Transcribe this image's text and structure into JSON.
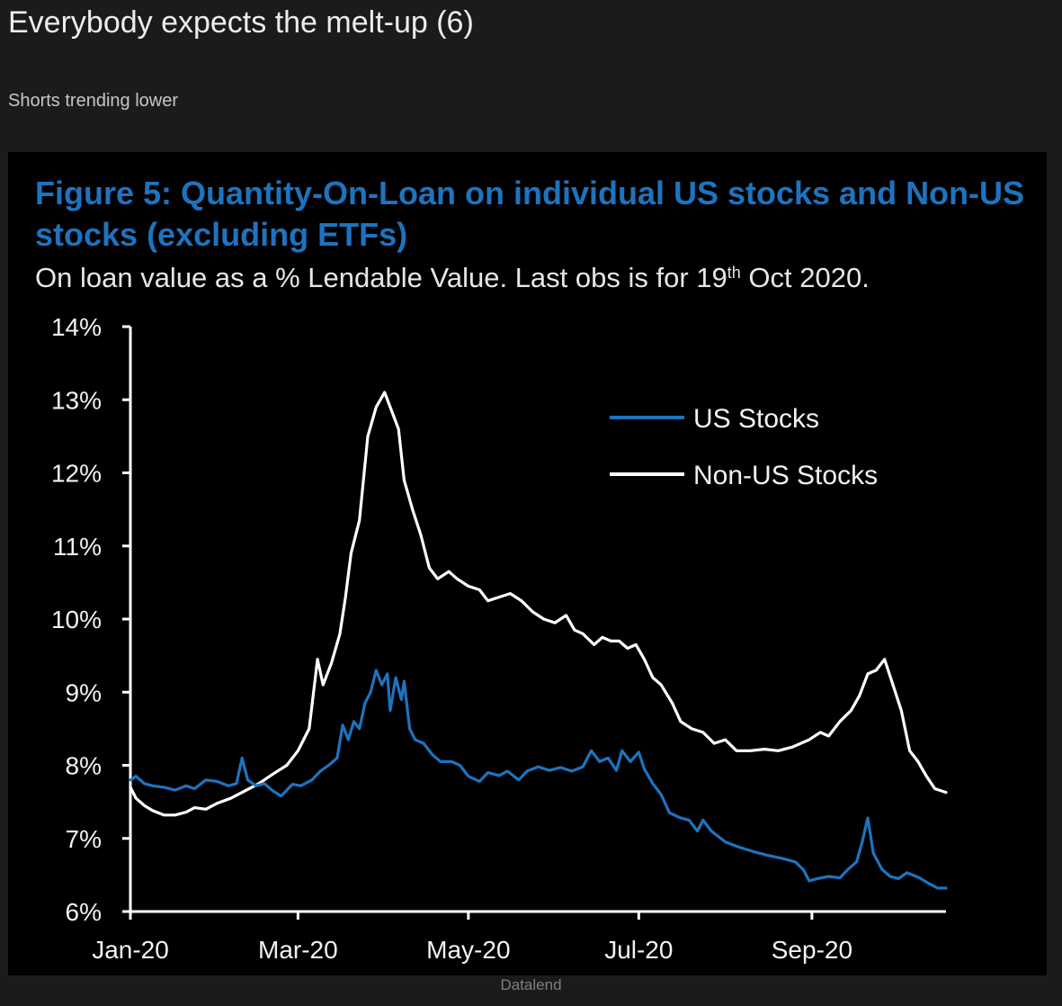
{
  "header": {
    "title": "Everybody expects the melt-up (6)",
    "subtitle": "Shorts trending lower"
  },
  "figure": {
    "title_line1": "Figure 5: Quantity-On-Loan on individual US stocks and Non-US",
    "title_line2": "stocks (excluding ETFs)",
    "subtitle_main": "On loan value as a % Lendable Value. Last obs is for 19",
    "subtitle_sup": "th",
    "subtitle_tail": " Oct 2020."
  },
  "source": "Datalend",
  "colors": {
    "us": "#1e73be",
    "non_us": "#ffffff",
    "title": "#1e73be"
  },
  "chart_data": {
    "type": "line",
    "title": "Figure 5: Quantity-On-Loan on individual US stocks and Non-US stocks (excluding ETFs)",
    "subtitle": "On loan value as a % Lendable Value. Last obs is for 19th Oct 2020.",
    "xlabel": "",
    "ylabel": "",
    "ylim": [
      6,
      14
    ],
    "yticks": [
      6,
      7,
      8,
      9,
      10,
      11,
      12,
      13,
      14
    ],
    "ytick_labels": [
      "6%",
      "7%",
      "8%",
      "9%",
      "10%",
      "11%",
      "12%",
      "13%",
      "14%"
    ],
    "xlim": [
      "2020-01-01",
      "2020-10-19"
    ],
    "xticks": [
      "2020-01-01",
      "2020-03-01",
      "2020-05-01",
      "2020-07-01",
      "2020-09-01"
    ],
    "xtick_labels": [
      "Jan-20",
      "Mar-20",
      "May-20",
      "Jul-20",
      "Sep-20"
    ],
    "grid": false,
    "legend": "top-right",
    "series": [
      {
        "name": "US Stocks",
        "color": "#1e73be",
        "points": [
          [
            "2020-01-01",
            7.8
          ],
          [
            "2020-01-03",
            7.85
          ],
          [
            "2020-01-06",
            7.75
          ],
          [
            "2020-01-09",
            7.72
          ],
          [
            "2020-01-13",
            7.7
          ],
          [
            "2020-01-17",
            7.66
          ],
          [
            "2020-01-21",
            7.72
          ],
          [
            "2020-01-24",
            7.68
          ],
          [
            "2020-01-28",
            7.8
          ],
          [
            "2020-02-01",
            7.78
          ],
          [
            "2020-02-05",
            7.72
          ],
          [
            "2020-02-08",
            7.75
          ],
          [
            "2020-02-10",
            8.1
          ],
          [
            "2020-02-12",
            7.8
          ],
          [
            "2020-02-15",
            7.72
          ],
          [
            "2020-02-18",
            7.75
          ],
          [
            "2020-02-21",
            7.65
          ],
          [
            "2020-02-24",
            7.58
          ],
          [
            "2020-02-28",
            7.74
          ],
          [
            "2020-03-02",
            7.72
          ],
          [
            "2020-03-06",
            7.8
          ],
          [
            "2020-03-09",
            7.92
          ],
          [
            "2020-03-12",
            8.0
          ],
          [
            "2020-03-15",
            8.1
          ],
          [
            "2020-03-17",
            8.55
          ],
          [
            "2020-03-19",
            8.35
          ],
          [
            "2020-03-21",
            8.6
          ],
          [
            "2020-03-23",
            8.5
          ],
          [
            "2020-03-25",
            8.85
          ],
          [
            "2020-03-27",
            9.0
          ],
          [
            "2020-03-29",
            9.3
          ],
          [
            "2020-03-31",
            9.1
          ],
          [
            "2020-04-02",
            9.25
          ],
          [
            "2020-04-03",
            8.75
          ],
          [
            "2020-04-05",
            9.2
          ],
          [
            "2020-04-07",
            8.9
          ],
          [
            "2020-04-08",
            9.15
          ],
          [
            "2020-04-10",
            8.5
          ],
          [
            "2020-04-12",
            8.35
          ],
          [
            "2020-04-15",
            8.3
          ],
          [
            "2020-04-18",
            8.15
          ],
          [
            "2020-04-21",
            8.05
          ],
          [
            "2020-04-25",
            8.05
          ],
          [
            "2020-04-28",
            8.0
          ],
          [
            "2020-05-01",
            7.85
          ],
          [
            "2020-05-05",
            7.78
          ],
          [
            "2020-05-08",
            7.9
          ],
          [
            "2020-05-12",
            7.86
          ],
          [
            "2020-05-15",
            7.92
          ],
          [
            "2020-05-19",
            7.8
          ],
          [
            "2020-05-22",
            7.92
          ],
          [
            "2020-05-26",
            7.98
          ],
          [
            "2020-05-30",
            7.93
          ],
          [
            "2020-06-03",
            7.97
          ],
          [
            "2020-06-07",
            7.92
          ],
          [
            "2020-06-11",
            7.98
          ],
          [
            "2020-06-14",
            8.2
          ],
          [
            "2020-06-17",
            8.05
          ],
          [
            "2020-06-20",
            8.1
          ],
          [
            "2020-06-23",
            7.93
          ],
          [
            "2020-06-25",
            8.2
          ],
          [
            "2020-06-28",
            8.05
          ],
          [
            "2020-07-01",
            8.18
          ],
          [
            "2020-07-03",
            7.95
          ],
          [
            "2020-07-06",
            7.75
          ],
          [
            "2020-07-09",
            7.6
          ],
          [
            "2020-07-12",
            7.35
          ],
          [
            "2020-07-16",
            7.28
          ],
          [
            "2020-07-19",
            7.25
          ],
          [
            "2020-07-22",
            7.1
          ],
          [
            "2020-07-24",
            7.25
          ],
          [
            "2020-07-27",
            7.1
          ],
          [
            "2020-08-01",
            6.95
          ],
          [
            "2020-08-06",
            6.88
          ],
          [
            "2020-08-11",
            6.82
          ],
          [
            "2020-08-16",
            6.77
          ],
          [
            "2020-08-21",
            6.73
          ],
          [
            "2020-08-26",
            6.68
          ],
          [
            "2020-08-29",
            6.57
          ],
          [
            "2020-08-31",
            6.42
          ],
          [
            "2020-09-03",
            6.45
          ],
          [
            "2020-09-07",
            6.48
          ],
          [
            "2020-09-11",
            6.46
          ],
          [
            "2020-09-14",
            6.58
          ],
          [
            "2020-09-17",
            6.68
          ],
          [
            "2020-09-19",
            6.95
          ],
          [
            "2020-09-21",
            7.28
          ],
          [
            "2020-09-23",
            6.8
          ],
          [
            "2020-09-26",
            6.58
          ],
          [
            "2020-09-29",
            6.48
          ],
          [
            "2020-10-02",
            6.45
          ],
          [
            "2020-10-05",
            6.53
          ],
          [
            "2020-10-09",
            6.47
          ],
          [
            "2020-10-13",
            6.38
          ],
          [
            "2020-10-16",
            6.32
          ],
          [
            "2020-10-19",
            6.32
          ]
        ]
      },
      {
        "name": "Non-US Stocks",
        "color": "#ffffff",
        "points": [
          [
            "2020-01-01",
            7.7
          ],
          [
            "2020-01-03",
            7.55
          ],
          [
            "2020-01-06",
            7.45
          ],
          [
            "2020-01-09",
            7.38
          ],
          [
            "2020-01-13",
            7.32
          ],
          [
            "2020-01-17",
            7.32
          ],
          [
            "2020-01-21",
            7.36
          ],
          [
            "2020-01-24",
            7.42
          ],
          [
            "2020-01-28",
            7.4
          ],
          [
            "2020-02-01",
            7.48
          ],
          [
            "2020-02-06",
            7.55
          ],
          [
            "2020-02-11",
            7.65
          ],
          [
            "2020-02-16",
            7.75
          ],
          [
            "2020-02-21",
            7.88
          ],
          [
            "2020-02-26",
            8.0
          ],
          [
            "2020-03-01",
            8.2
          ],
          [
            "2020-03-05",
            8.5
          ],
          [
            "2020-03-08",
            9.45
          ],
          [
            "2020-03-10",
            9.1
          ],
          [
            "2020-03-13",
            9.4
          ],
          [
            "2020-03-16",
            9.8
          ],
          [
            "2020-03-18",
            10.3
          ],
          [
            "2020-03-20",
            10.9
          ],
          [
            "2020-03-23",
            11.35
          ],
          [
            "2020-03-26",
            12.5
          ],
          [
            "2020-03-29",
            12.9
          ],
          [
            "2020-04-01",
            13.1
          ],
          [
            "2020-04-04",
            12.8
          ],
          [
            "2020-04-06",
            12.6
          ],
          [
            "2020-04-08",
            11.9
          ],
          [
            "2020-04-11",
            11.5
          ],
          [
            "2020-04-14",
            11.15
          ],
          [
            "2020-04-17",
            10.7
          ],
          [
            "2020-04-20",
            10.55
          ],
          [
            "2020-04-24",
            10.65
          ],
          [
            "2020-04-27",
            10.55
          ],
          [
            "2020-05-01",
            10.45
          ],
          [
            "2020-05-05",
            10.4
          ],
          [
            "2020-05-08",
            10.25
          ],
          [
            "2020-05-12",
            10.3
          ],
          [
            "2020-05-16",
            10.35
          ],
          [
            "2020-05-20",
            10.25
          ],
          [
            "2020-05-24",
            10.1
          ],
          [
            "2020-05-28",
            10.0
          ],
          [
            "2020-06-01",
            9.95
          ],
          [
            "2020-06-05",
            10.05
          ],
          [
            "2020-06-08",
            9.85
          ],
          [
            "2020-06-11",
            9.8
          ],
          [
            "2020-06-15",
            9.65
          ],
          [
            "2020-06-18",
            9.75
          ],
          [
            "2020-06-21",
            9.7
          ],
          [
            "2020-06-24",
            9.7
          ],
          [
            "2020-06-27",
            9.6
          ],
          [
            "2020-06-30",
            9.65
          ],
          [
            "2020-07-03",
            9.45
          ],
          [
            "2020-07-06",
            9.2
          ],
          [
            "2020-07-09",
            9.1
          ],
          [
            "2020-07-13",
            8.85
          ],
          [
            "2020-07-16",
            8.6
          ],
          [
            "2020-07-20",
            8.5
          ],
          [
            "2020-07-24",
            8.45
          ],
          [
            "2020-07-28",
            8.3
          ],
          [
            "2020-08-01",
            8.35
          ],
          [
            "2020-08-05",
            8.2
          ],
          [
            "2020-08-10",
            8.2
          ],
          [
            "2020-08-15",
            8.22
          ],
          [
            "2020-08-20",
            8.2
          ],
          [
            "2020-08-25",
            8.25
          ],
          [
            "2020-08-31",
            8.35
          ],
          [
            "2020-09-04",
            8.45
          ],
          [
            "2020-09-07",
            8.4
          ],
          [
            "2020-09-11",
            8.6
          ],
          [
            "2020-09-15",
            8.75
          ],
          [
            "2020-09-18",
            8.95
          ],
          [
            "2020-09-21",
            9.25
          ],
          [
            "2020-09-24",
            9.3
          ],
          [
            "2020-09-27",
            9.45
          ],
          [
            "2020-09-30",
            9.1
          ],
          [
            "2020-10-03",
            8.75
          ],
          [
            "2020-10-06",
            8.2
          ],
          [
            "2020-10-09",
            8.05
          ],
          [
            "2020-10-12",
            7.85
          ],
          [
            "2020-10-15",
            7.68
          ],
          [
            "2020-10-19",
            7.63
          ]
        ]
      }
    ]
  }
}
